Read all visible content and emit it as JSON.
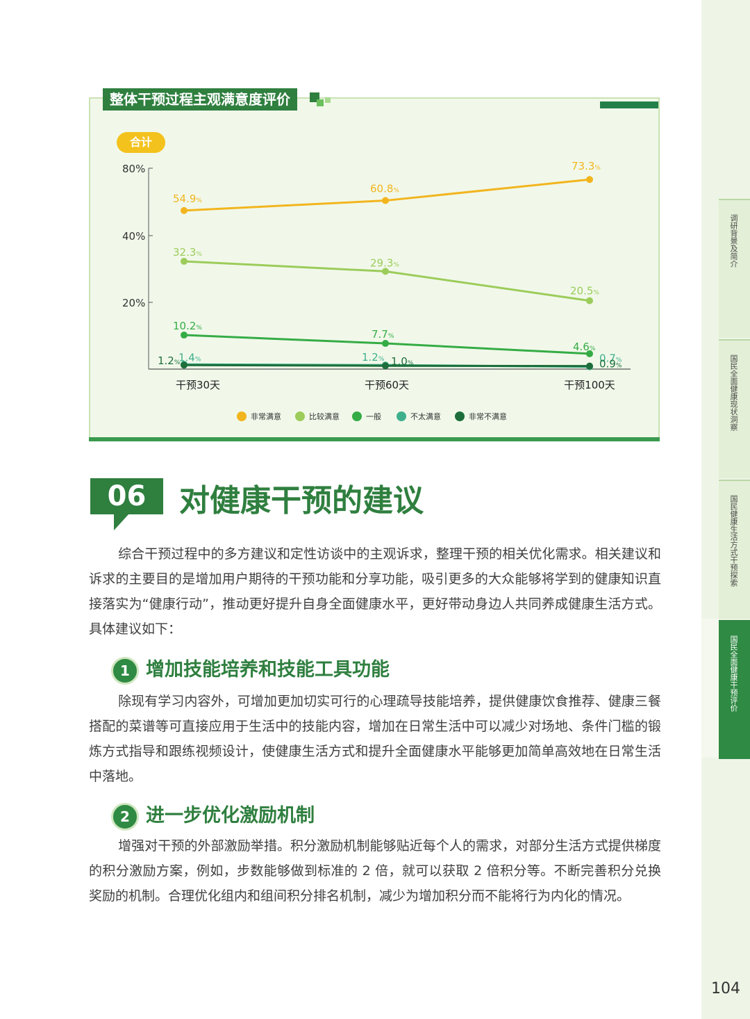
{
  "chart_title": "整体干预过程主观满意度评价",
  "badge": "合计",
  "chart_data": {
    "type": "line",
    "title": "整体干预过程主观满意度评价",
    "categories": [
      "干预30天",
      "干预60天",
      "干预100天"
    ],
    "y_ticks": [
      "80%",
      "40%",
      "20%"
    ],
    "series": [
      {
        "name": "非常满意",
        "values": [
          54.9,
          60.8,
          73.3
        ],
        "labels": [
          "54.9",
          "60.8",
          "73.3"
        ],
        "color": "#f2b51e"
      },
      {
        "name": "比较满意",
        "values": [
          32.3,
          29.3,
          20.5
        ],
        "labels": [
          "32.3",
          "29.3",
          "20.5"
        ],
        "color": "#9ccc5a"
      },
      {
        "name": "一般",
        "values": [
          10.2,
          7.7,
          4.6
        ],
        "labels": [
          "10.2",
          "7.7",
          "4.6"
        ],
        "color": "#35ac45"
      },
      {
        "name": "不太满意",
        "values": [
          1.4,
          1.2,
          0.7
        ],
        "labels": [
          "1.4",
          "1.2",
          "0.7"
        ],
        "color": "#3fb08c"
      },
      {
        "name": "非常不满意",
        "values": [
          1.2,
          1.0,
          0.9
        ],
        "labels": [
          "1.2",
          "1.0",
          "0.9"
        ],
        "color": "#1d6e3b"
      }
    ],
    "unit": "%",
    "legend": "bottom"
  },
  "section": {
    "number": "06",
    "title": "对健康干预的建议",
    "intro": "综合干预过程中的多方建议和定性访谈中的主观诉求，整理干预的相关优化需求。相关建议和诉求的主要目的是增加用户期待的干预功能和分享功能，吸引更多的大众能够将学到的健康知识直接落实为“健康行动”，推动更好提升自身全面健康水平，更好带动身边人共同养成健康生活方式。具体建议如下："
  },
  "items": [
    {
      "num": "1",
      "title": "增加技能培养和技能工具功能",
      "text": "除现有学习内容外，可增加更加切实可行的心理疏导技能培养，提供健康饮食推荐、健康三餐搭配的菜谱等可直接应用于生活中的技能内容，增加在日常生活中可以减少对场地、条件门槛的锻炼方式指导和跟练视频设计，使健康生活方式和提升全面健康水平能够更加简单高效地在日常生活中落地。"
    },
    {
      "num": "2",
      "title": "进一步优化激励机制",
      "text": "增强对干预的外部激励举措。积分激励机制能够贴近每个人的需求，对部分生活方式提供梯度的积分激励方案，例如，步数能够做到标准的 2 倍，就可以获取 2 倍积分等。不断完善积分兑换奖励的机制。合理优化组内和组间积分排名机制，减少为增加积分而不能将行为内化的情况。"
    }
  ],
  "side_tabs": [
    "调研背景及简介",
    "国民全面健康现状洞察",
    "国民健康生活方式干预探索",
    "国民全面健康干预评价"
  ],
  "page_number": "104"
}
